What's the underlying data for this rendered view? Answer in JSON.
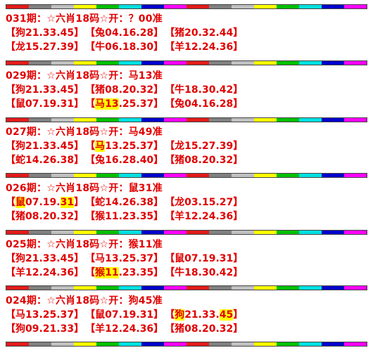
{
  "stripe_colors": [
    "#e11b1b",
    "#808080",
    "#c0c0c0",
    "#ffff00",
    "#00c000",
    "#00e0e0",
    "#0000cc",
    "#ff00ff",
    "#e11b1b",
    "#808080",
    "#c0c0c0",
    "#ffff00",
    "#00c000",
    "#00e0e0",
    "#0000cc",
    "#ff00ff"
  ],
  "entries": [
    {
      "title": "031期：☆六肖18码☆开：？00准",
      "rows": [
        [
          {
            "a": "【狗21.33.45】"
          },
          {
            "a": "【兔04.16.28】"
          },
          {
            "a": "【猪20.32.44】"
          }
        ],
        [
          {
            "a": "【龙15.27.39】"
          },
          {
            "a": "【牛06.18.30】"
          },
          {
            "a": "【羊12.24.36】"
          }
        ]
      ]
    },
    {
      "title": "029期：☆六肖18码☆开：马13准",
      "rows": [
        [
          {
            "a": "【狗21.33.45】"
          },
          {
            "a": "【猪08.20.32】"
          },
          {
            "a": "【牛18.30.42】"
          }
        ],
        [
          {
            "a": "【鼠07.19.31】"
          },
          {
            "a": "【",
            "h": "马13",
            "b": ".25.37】"
          },
          {
            "a": "【兔04.16.28】"
          }
        ]
      ]
    },
    {
      "title": "027期：☆六肖18码☆开：马49准",
      "rows": [
        [
          {
            "a": "【狗21.33.45】"
          },
          {
            "a": "【",
            "h": "马",
            "b": "13.25.37】"
          },
          {
            "a": "【龙15.27.39】"
          }
        ],
        [
          {
            "a": "【蛇14.26.38】"
          },
          {
            "a": "【兔16.28.40】"
          },
          {
            "a": "【猪08.20.32】"
          }
        ]
      ]
    },
    {
      "title": "026期：☆六肖18码☆开：鼠31准",
      "rows": [
        [
          {
            "a": "【",
            "h": "鼠",
            "b": "07.19."
          },
          {
            "a": "",
            "h": "31",
            "b": "】"
          },
          {
            "a": "【蛇14.26.38】"
          },
          {
            "a": "【龙03.15.27】"
          }
        ],
        [
          {
            "a": "【猪08.20.32】"
          },
          {
            "a": "【猴11.23.35】"
          },
          {
            "a": "【羊12.24.36】"
          }
        ]
      ]
    },
    {
      "title": "025期：☆六肖18码☆开：猴11准",
      "rows": [
        [
          {
            "a": "【狗21.33.45】"
          },
          {
            "a": "【马13.25.37】"
          },
          {
            "a": "【鼠07.19.31】"
          }
        ],
        [
          {
            "a": "【羊12.24.36】"
          },
          {
            "a": "【",
            "h": "猴11",
            "b": ".23.35】"
          },
          {
            "a": "【牛18.30.42】"
          }
        ]
      ]
    },
    {
      "title": "024期：☆六肖18码☆开：狗45准",
      "rows": [
        [
          {
            "a": "【马13.25.37】"
          },
          {
            "a": "【鼠07.19.31】"
          },
          {
            "a": "【",
            "h": "狗",
            "b": "21.33."
          },
          {
            "a": "",
            "h": "45",
            "b": "】"
          }
        ],
        [
          {
            "a": "【狗09.21.33】"
          },
          {
            "a": "【羊12.24.36】"
          },
          {
            "a": "【猪08.20.32】"
          }
        ]
      ]
    }
  ]
}
